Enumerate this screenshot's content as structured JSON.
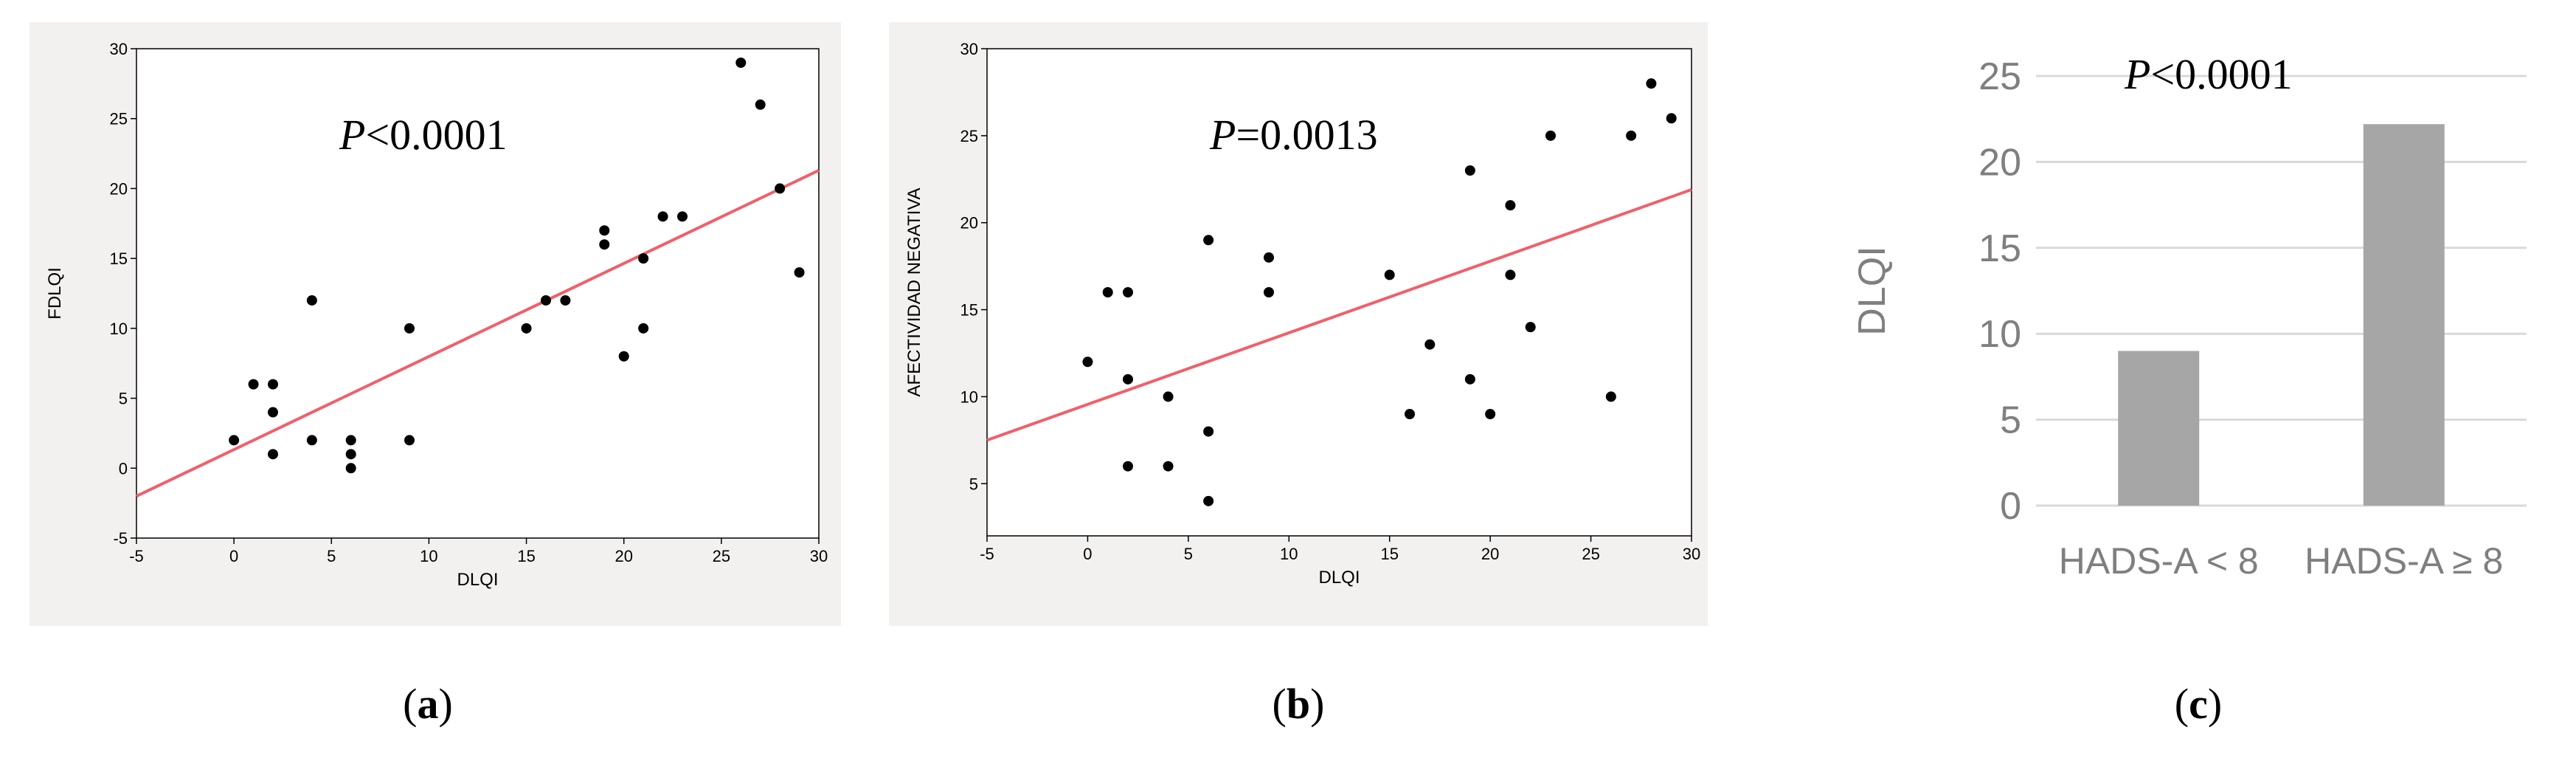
{
  "captions": {
    "a": "a",
    "b": "b",
    "c": "c"
  },
  "colors": {
    "regression": "#f0606a",
    "point": "#000000",
    "bar": "#a6a6a6",
    "grid": "#d9d9d9",
    "plot_bg": "#f2f1f0"
  },
  "chart_data": [
    {
      "id": "a",
      "type": "scatter",
      "xlabel": "DLQI",
      "ylabel": "FDLQI",
      "annotation": {
        "italic": "P",
        "rest": "<0.0001"
      },
      "xlim": [
        -5,
        30
      ],
      "ylim": [
        -5,
        30
      ],
      "xticks": [
        "-5",
        "0",
        "5",
        "10",
        "15",
        "20",
        "25",
        "30"
      ],
      "yticks": [
        "-5",
        "0",
        "5",
        "10",
        "15",
        "20",
        "25",
        "30"
      ],
      "points": [
        [
          0,
          2
        ],
        [
          1,
          6
        ],
        [
          2,
          6
        ],
        [
          2,
          4
        ],
        [
          2,
          1
        ],
        [
          4,
          12
        ],
        [
          4,
          2
        ],
        [
          6,
          2
        ],
        [
          6,
          1
        ],
        [
          6,
          0
        ],
        [
          9,
          10
        ],
        [
          9,
          2
        ],
        [
          15,
          10
        ],
        [
          16,
          12
        ],
        [
          17,
          12
        ],
        [
          19,
          17
        ],
        [
          19,
          16
        ],
        [
          20,
          8
        ],
        [
          21,
          15
        ],
        [
          21,
          10
        ],
        [
          22,
          18
        ],
        [
          23,
          18
        ],
        [
          26,
          29
        ],
        [
          27,
          26
        ],
        [
          28,
          20
        ],
        [
          29,
          14
        ]
      ],
      "regression": {
        "x": [
          -5,
          30
        ],
        "y": [
          -2,
          21.3
        ]
      },
      "grid": false
    },
    {
      "id": "b",
      "type": "scatter",
      "xlabel": "DLQI",
      "ylabel": "AFECTIVIDAD NEGATIVA",
      "annotation": {
        "italic": "P",
        "rest": "=0.0013"
      },
      "xlim": [
        -5,
        30
      ],
      "ylim": [
        2,
        30
      ],
      "xticks": [
        "-5",
        "0",
        "5",
        "10",
        "15",
        "20",
        "25",
        "30"
      ],
      "yticks": [
        "5",
        "10",
        "15",
        "20",
        "25",
        "30"
      ],
      "points": [
        [
          0,
          12
        ],
        [
          1,
          16
        ],
        [
          2,
          16
        ],
        [
          2,
          11
        ],
        [
          2,
          6
        ],
        [
          4,
          10
        ],
        [
          4,
          6
        ],
        [
          6,
          19
        ],
        [
          6,
          8
        ],
        [
          6,
          4
        ],
        [
          9,
          18
        ],
        [
          9,
          16
        ],
        [
          15,
          17
        ],
        [
          16,
          9
        ],
        [
          17,
          13
        ],
        [
          19,
          23
        ],
        [
          19,
          11
        ],
        [
          20,
          9
        ],
        [
          21,
          21
        ],
        [
          21,
          17
        ],
        [
          22,
          14
        ],
        [
          23,
          25
        ],
        [
          26,
          10
        ],
        [
          27,
          25
        ],
        [
          28,
          28
        ],
        [
          29,
          26
        ]
      ],
      "regression": {
        "x": [
          -5,
          30
        ],
        "y": [
          7.5,
          21.9
        ]
      },
      "grid": false
    },
    {
      "id": "c",
      "type": "bar",
      "ylabel": "DLQI",
      "annotation": {
        "italic": "P",
        "rest": "<0.0001"
      },
      "categories": [
        "HADS-A < 8",
        "HADS-A ≥ 8"
      ],
      "values": [
        9,
        22.2
      ],
      "ylim": [
        0,
        25
      ],
      "yticks": [
        "0",
        "5",
        "10",
        "15",
        "20",
        "25"
      ],
      "grid": true
    }
  ]
}
